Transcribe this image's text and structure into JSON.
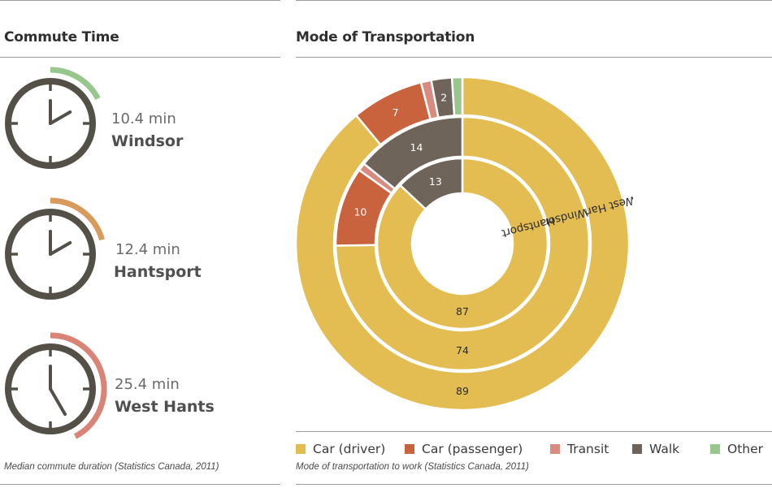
{
  "commute": {
    "heading": "Commute Time",
    "caption": "Median commute duration (Statistics Canada, 2011)",
    "items": [
      {
        "time": "10.4 min",
        "name": "Windsor",
        "minutes": 10.4,
        "color": "#98c78d"
      },
      {
        "time": "12.4 min",
        "name": "Hantsport",
        "minutes": 12.4,
        "color": "#d99a5e"
      },
      {
        "time": "25.4 min",
        "name": "West Hants",
        "minutes": 25.4,
        "color": "#d98476"
      }
    ]
  },
  "transport": {
    "heading": "Mode of Transportation",
    "caption": "Mode of transportation to work (Statistics Canada, 2011)"
  },
  "chart_data": {
    "type": "pie",
    "subtype": "multi-ring donut",
    "categories": [
      "Car (driver)",
      "Car (passenger)",
      "Transit",
      "Walk",
      "Other"
    ],
    "colors": [
      "#e3bd52",
      "#c9633e",
      "#d98b82",
      "#6e645a",
      "#98c78d"
    ],
    "series": [
      {
        "name": "West Hants",
        "values": [
          89,
          7,
          1,
          2,
          1
        ],
        "labels": [
          "89",
          "7",
          "",
          "2",
          ""
        ]
      },
      {
        "name": "Windsor",
        "values": [
          74,
          10,
          1,
          14,
          0
        ],
        "labels": [
          "74",
          "10",
          "",
          "14",
          ""
        ]
      },
      {
        "name": "Hantsport",
        "values": [
          87,
          0,
          0,
          13,
          0
        ],
        "labels": [
          "87",
          "",
          "",
          "13",
          ""
        ]
      }
    ],
    "legend_position": "bottom"
  }
}
